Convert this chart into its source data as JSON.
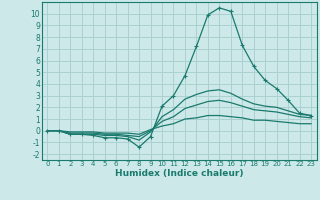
{
  "title": "",
  "xlabel": "Humidex (Indice chaleur)",
  "ylabel": "",
  "background_color": "#cce8e8",
  "grid_color": "#aad0d0",
  "line_color": "#1a7a6e",
  "xlim": [
    -0.5,
    23.5
  ],
  "ylim": [
    -2.5,
    11
  ],
  "xticks": [
    0,
    1,
    2,
    3,
    4,
    5,
    6,
    7,
    8,
    9,
    10,
    11,
    12,
    13,
    14,
    15,
    16,
    17,
    18,
    19,
    20,
    21,
    22,
    23
  ],
  "yticks": [
    -2,
    -1,
    0,
    1,
    2,
    3,
    4,
    5,
    6,
    7,
    8,
    9,
    10
  ],
  "series": [
    [
      0.0,
      0.0,
      -0.3,
      -0.3,
      -0.4,
      -0.6,
      -0.6,
      -0.7,
      -1.4,
      -0.5,
      2.1,
      3.0,
      4.7,
      7.2,
      9.9,
      10.5,
      10.2,
      7.3,
      5.5,
      4.3,
      3.6,
      2.6,
      1.5,
      1.3
    ],
    [
      0.0,
      0.0,
      -0.3,
      -0.3,
      -0.3,
      -0.4,
      -0.4,
      -0.5,
      -0.8,
      -0.1,
      1.2,
      1.8,
      2.7,
      3.1,
      3.4,
      3.5,
      3.2,
      2.7,
      2.3,
      2.1,
      2.0,
      1.7,
      1.4,
      1.3
    ],
    [
      0.0,
      0.0,
      -0.2,
      -0.2,
      -0.2,
      -0.3,
      -0.3,
      -0.4,
      -0.5,
      0.0,
      0.8,
      1.2,
      1.9,
      2.2,
      2.5,
      2.6,
      2.4,
      2.1,
      1.8,
      1.7,
      1.6,
      1.4,
      1.2,
      1.1
    ],
    [
      0.0,
      0.0,
      -0.1,
      -0.1,
      -0.1,
      -0.2,
      -0.2,
      -0.2,
      -0.3,
      0.1,
      0.4,
      0.6,
      1.0,
      1.1,
      1.3,
      1.3,
      1.2,
      1.1,
      0.9,
      0.9,
      0.8,
      0.7,
      0.6,
      0.6
    ]
  ]
}
